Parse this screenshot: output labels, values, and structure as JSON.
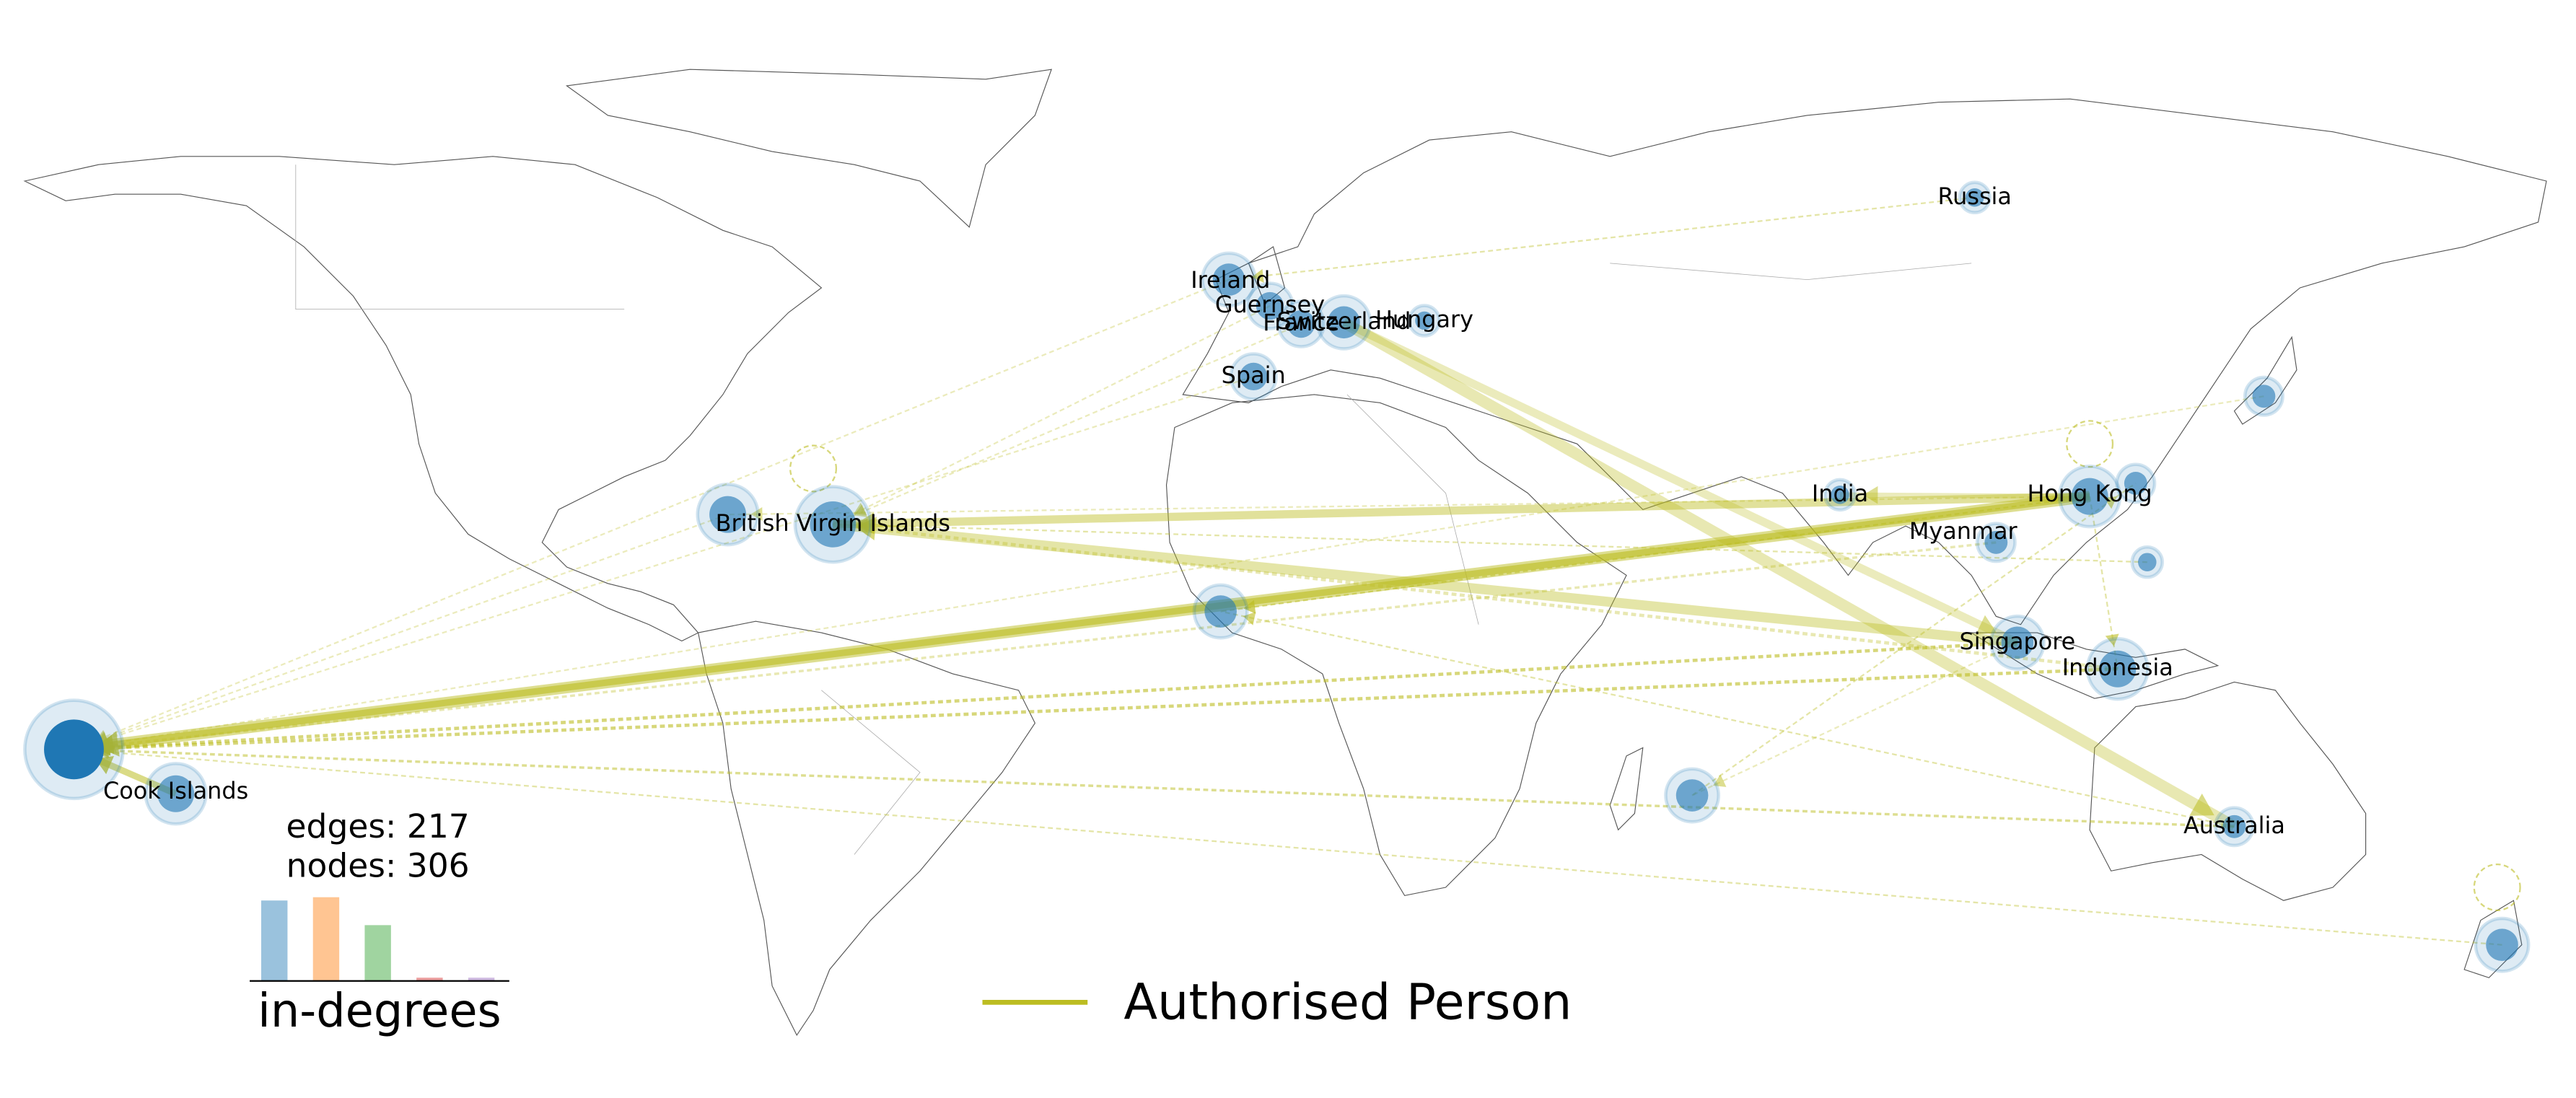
{
  "nodes": [
    {
      "label": "Russia"
    },
    {
      "label": "Ireland"
    },
    {
      "label": "Guernsey"
    },
    {
      "label": "France"
    },
    {
      "label": "Switzerland"
    },
    {
      "label": "Hungary"
    },
    {
      "label": "Spain"
    },
    {
      "label": "British Virgin Islands"
    },
    {
      "label": "India"
    },
    {
      "label": "Hong Kong"
    },
    {
      "label": "Myanmar"
    },
    {
      "label": "Singapore"
    },
    {
      "label": "Indonesia"
    },
    {
      "label": "Australia"
    },
    {
      "label": "Cook Islands"
    }
  ],
  "stats": [
    {
      "label": "edges:",
      "value": 217
    },
    {
      "label": "nodes:",
      "value": 306
    }
  ],
  "in_degrees": {
    "title": "in-degrees",
    "values": [
      49,
      51,
      34,
      2,
      2
    ],
    "colors": [
      "#1f77b4",
      "#ff7f0e",
      "#2ca02c",
      "#d62728",
      "#9467bd"
    ]
  },
  "legend": {
    "label": "Authorised Person",
    "color": "#bcbd22"
  }
}
